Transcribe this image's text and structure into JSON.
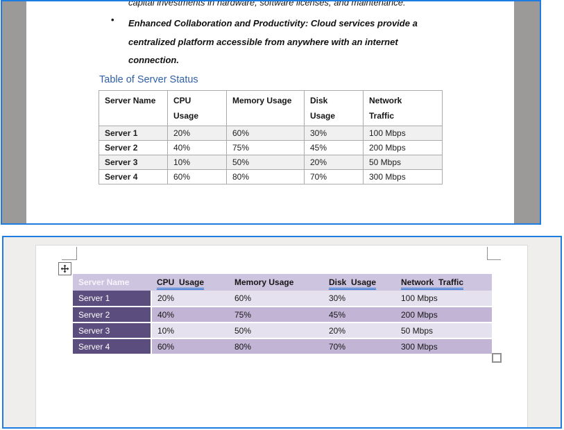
{
  "colors": {
    "frame_border": "#1c7ce2",
    "heading_blue": "#3060a8",
    "outside_margin_gray": "#9b9a98",
    "bottom_panel_bg": "#efeeec",
    "plain_table_stripe": "#f0f0f0",
    "plain_table_border": "#aaaaaa",
    "styled_header_bg": "#cdc4df",
    "styled_first_col_bg": "#5b4d7d",
    "styled_row_odd": "#c1b4d4",
    "styled_row_even": "#e6e1ee",
    "grammar_underline_blue": "#1a6fd8"
  },
  "top_panel": {
    "paragraph_fragment": "capital investments in hardware, software licenses, and maintenance.",
    "bullet_marker": "•",
    "bullet_text": "Enhanced Collaboration and Productivity: Cloud services provide a\ncentralized platform accessible from anywhere with an internet\nconnection.",
    "heading": "Table of Server Status",
    "table": {
      "headers": [
        "Server Name",
        "CPU\nUsage",
        "Memory Usage",
        "Disk\nUsage",
        "Network\nTraffic"
      ],
      "rows": [
        [
          "Server 1",
          "20%",
          "60%",
          "30%",
          "100 Mbps"
        ],
        [
          "Server 2",
          "40%",
          "75%",
          "45%",
          "200 Mbps"
        ],
        [
          "Server 3",
          "10%",
          "50%",
          "20%",
          "50 Mbps"
        ],
        [
          "Server 4",
          "60%",
          "80%",
          "70%",
          "300 Mbps"
        ]
      ]
    }
  },
  "bottom_panel": {
    "icons": {
      "move_handle": "four-way-move-arrow",
      "resize_handle": "table-resize-square",
      "margin_marks": "page-margin-corner-crop-marks"
    },
    "table": {
      "headers": [
        {
          "label": "Server Name",
          "underline": false,
          "first": true
        },
        {
          "label": "CPU  Usage",
          "underline": true,
          "first": false
        },
        {
          "label": "Memory Usage",
          "underline": false,
          "first": false
        },
        {
          "label": "Disk  Usage",
          "underline": true,
          "first": false
        },
        {
          "label": "Network  Traffic",
          "underline": true,
          "first": false
        }
      ],
      "rows": [
        [
          "Server 1",
          "20%",
          "60%",
          "30%",
          "100 Mbps"
        ],
        [
          "Server 2",
          "40%",
          "75%",
          "45%",
          "200 Mbps"
        ],
        [
          "Server 3",
          "10%",
          "50%",
          "20%",
          "50 Mbps"
        ],
        [
          "Server 4",
          "60%",
          "80%",
          "70%",
          "300 Mbps"
        ]
      ]
    }
  }
}
